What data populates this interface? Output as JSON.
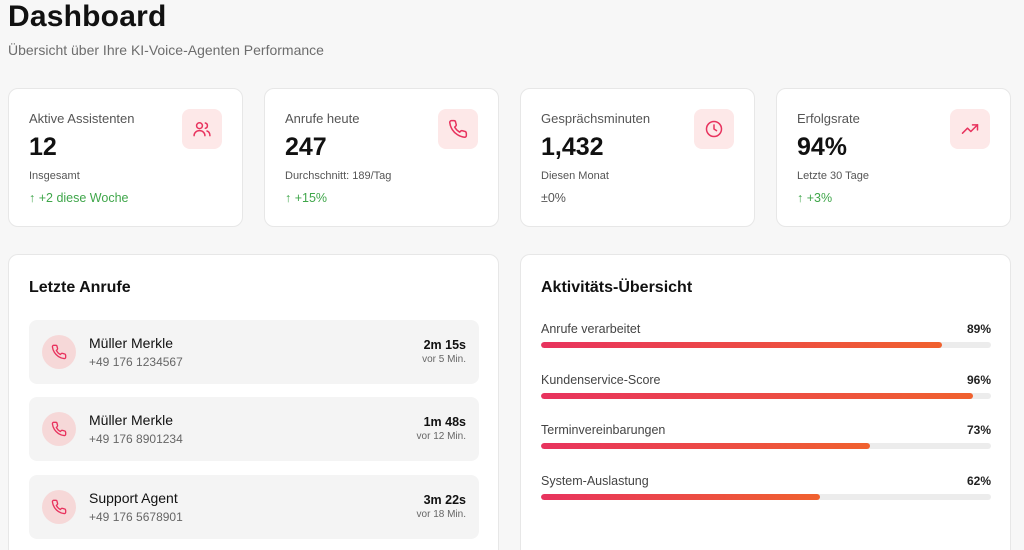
{
  "header": {
    "title": "Dashboard",
    "subtitle": "Übersicht über Ihre KI-Voice-Agenten Performance"
  },
  "stats": [
    {
      "label": "Aktive Assistenten",
      "value": "12",
      "sub": "Insgesamt",
      "trend": "↑ +2 diese Woche",
      "icon": "users-icon"
    },
    {
      "label": "Anrufe heute",
      "value": "247",
      "sub": "Durchschnitt: 189/Tag",
      "trend": "↑ +15%",
      "icon": "phone-icon"
    },
    {
      "label": "Gesprächsminuten",
      "value": "1,432",
      "sub": "Diesen Monat",
      "trend": "±0%",
      "icon": "clock-icon"
    },
    {
      "label": "Erfolgsrate",
      "value": "94%",
      "sub": "Letzte 30 Tage",
      "trend": "↑ +3%",
      "icon": "trending-up-icon"
    }
  ],
  "recent_calls": {
    "title": "Letzte Anrufe",
    "items": [
      {
        "name": "Müller Merkle",
        "number": "+49 176 1234567",
        "duration": "2m 15s",
        "time": "vor 5 Min."
      },
      {
        "name": "Müller Merkle",
        "number": "+49 176 8901234",
        "duration": "1m 48s",
        "time": "vor 12 Min."
      },
      {
        "name": "Support Agent",
        "number": "+49 176 5678901",
        "duration": "3m 22s",
        "time": "vor 18 Min."
      }
    ]
  },
  "activity": {
    "title": "Aktivitäts-Übersicht",
    "metrics": [
      {
        "label": "Anrufe verarbeitet",
        "value_label": "89%",
        "value": 89
      },
      {
        "label": "Kundenservice-Score",
        "value_label": "96%",
        "value": 96
      },
      {
        "label": "Terminvereinbarungen",
        "value_label": "73%",
        "value": 73
      },
      {
        "label": "System-Auslastung",
        "value_label": "62%",
        "value": 62
      }
    ]
  },
  "colors": {
    "accent": "#e8335e",
    "accent_end": "#f0612e",
    "positive": "#3fa64a",
    "icon_bg": "#fde8e8"
  }
}
